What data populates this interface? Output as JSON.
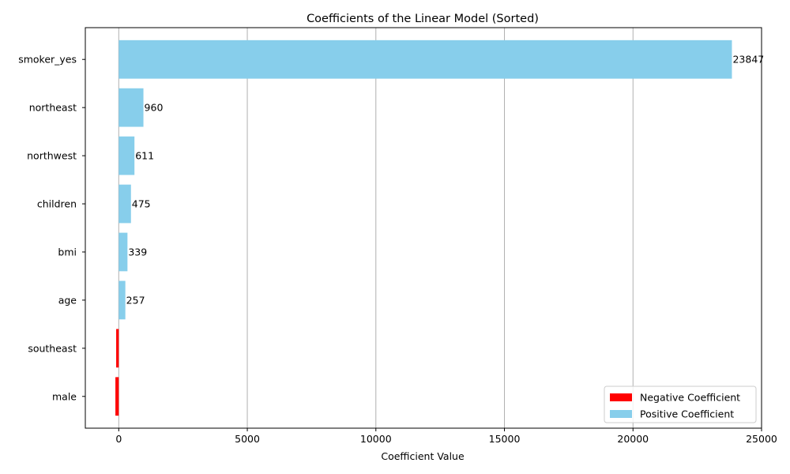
{
  "chart_data": {
    "type": "bar",
    "orientation": "horizontal",
    "title": "Coefficients of the Linear Model (Sorted)",
    "xlabel": "Coefficient Value",
    "ylabel": "",
    "categories": [
      "smoker_yes",
      "northeast",
      "northwest",
      "children",
      "bmi",
      "age",
      "southeast",
      "male"
    ],
    "values": [
      23847,
      960,
      611,
      475,
      339,
      257,
      -100,
      -130
    ],
    "value_labels": [
      "23847",
      "960",
      "611",
      "475",
      "339",
      "257",
      "",
      ""
    ],
    "xlim": [
      -1300,
      25000
    ],
    "xticks": [
      0,
      5000,
      10000,
      15000,
      20000,
      25000
    ],
    "xtick_labels": [
      "0",
      "5000",
      "10000",
      "15000",
      "20000",
      "25000"
    ],
    "grid": "x",
    "colors": {
      "positive": "#87ceeb",
      "negative": "#ff0000"
    },
    "legend": {
      "position": "bottom-right",
      "entries": [
        {
          "label": "Negative Coefficient",
          "color": "#ff0000"
        },
        {
          "label": "Positive Coefficient",
          "color": "#87ceeb"
        }
      ]
    }
  }
}
